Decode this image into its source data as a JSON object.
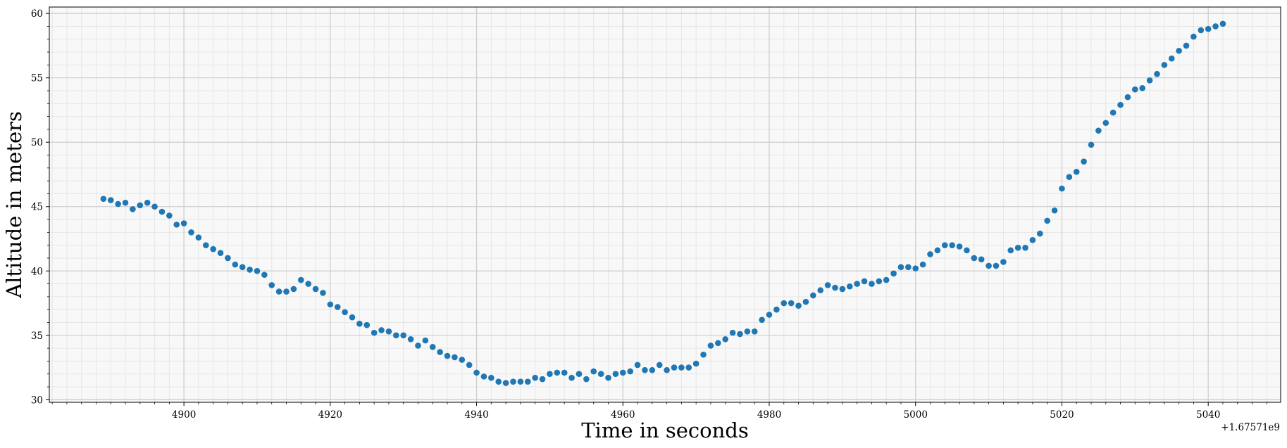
{
  "chart_data": {
    "type": "scatter",
    "title": "",
    "xlabel": "Time in seconds",
    "ylabel": "Altitude in meters",
    "x_offset_label": "+1.67571e9",
    "xlim": [
      4881.6,
      5049.9
    ],
    "ylim": [
      29.8,
      60.5
    ],
    "x_ticks": [
      4900,
      4920,
      4940,
      4960,
      4980,
      5000,
      5020,
      5040
    ],
    "x_tick_labels": [
      "4900",
      "4920",
      "4940",
      "4960",
      "4980",
      "5000",
      "5020",
      "5040"
    ],
    "y_ticks": [
      30,
      35,
      40,
      45,
      50,
      55,
      60
    ],
    "y_tick_labels": [
      "30",
      "35",
      "40",
      "45",
      "50",
      "55",
      "60"
    ],
    "grid": true,
    "minor_grid": true,
    "legend": "none",
    "colors": {
      "points": "#1f77b4",
      "plot_background": "#f8f8f8",
      "major_grid": "#cccccc",
      "minor_grid": "#e6e6e6"
    },
    "series": [
      {
        "x": [
          4889,
          4890,
          4891,
          4892,
          4893,
          4894,
          4895,
          4896,
          4897,
          4898,
          4899,
          4900,
          4901,
          4902,
          4903,
          4904,
          4905,
          4906,
          4907,
          4908,
          4909,
          4910,
          4911,
          4912,
          4913,
          4914,
          4915,
          4916,
          4917,
          4918,
          4919,
          4920,
          4921,
          4922,
          4923,
          4924,
          4925,
          4926,
          4927,
          4928,
          4929,
          4930,
          4931,
          4932,
          4933,
          4934,
          4935,
          4936,
          4937,
          4938,
          4939,
          4940,
          4941,
          4942,
          4943,
          4944,
          4945,
          4946,
          4947,
          4948,
          4949,
          4950,
          4951,
          4952,
          4953,
          4954,
          4955,
          4956,
          4957,
          4958,
          4959,
          4960,
          4961,
          4962,
          4963,
          4964,
          4965,
          4966,
          4967,
          4968,
          4969,
          4970,
          4971,
          4972,
          4973,
          4974,
          4975,
          4976,
          4977,
          4978,
          4979,
          4980,
          4981,
          4982,
          4983,
          4984,
          4985,
          4986,
          4987,
          4988,
          4989,
          4990,
          4991,
          4992,
          4993,
          4994,
          4995,
          4996,
          4997,
          4998,
          4999,
          5000,
          5001,
          5002,
          5003,
          5004,
          5005,
          5006,
          5007,
          5008,
          5009,
          5010,
          5011,
          5012,
          5013,
          5014,
          5015,
          5016,
          5017,
          5018,
          5019,
          5020,
          5021,
          5022,
          5023,
          5024,
          5025,
          5026,
          5027,
          5028,
          5029,
          5030,
          5031,
          5032,
          5033,
          5034,
          5035,
          5036,
          5037,
          5038,
          5039,
          5040,
          5041,
          5042
        ],
        "y": [
          45.6,
          45.5,
          45.2,
          45.3,
          44.8,
          45.1,
          45.3,
          45.0,
          44.6,
          44.3,
          43.6,
          43.7,
          43.0,
          42.6,
          42.0,
          41.7,
          41.4,
          41.0,
          40.5,
          40.3,
          40.1,
          40.0,
          39.7,
          38.9,
          38.4,
          38.4,
          38.6,
          39.3,
          39.0,
          38.6,
          38.3,
          37.4,
          37.2,
          36.8,
          36.4,
          35.9,
          35.8,
          35.2,
          35.4,
          35.3,
          35.0,
          35.0,
          34.7,
          34.2,
          34.6,
          34.1,
          33.7,
          33.4,
          33.3,
          33.1,
          32.7,
          32.1,
          31.8,
          31.7,
          31.4,
          31.3,
          31.4,
          31.4,
          31.4,
          31.7,
          31.6,
          32.0,
          32.1,
          32.1,
          31.7,
          32.0,
          31.6,
          32.2,
          32.0,
          31.7,
          32.0,
          32.1,
          32.2,
          32.7,
          32.3,
          32.3,
          32.7,
          32.3,
          32.5,
          32.5,
          32.5,
          32.8,
          33.5,
          34.2,
          34.4,
          34.7,
          35.2,
          35.1,
          35.3,
          35.3,
          36.2,
          36.6,
          37.0,
          37.5,
          37.5,
          37.3,
          37.6,
          38.1,
          38.5,
          38.9,
          38.7,
          38.6,
          38.8,
          39.0,
          39.2,
          39.0,
          39.2,
          39.3,
          39.8,
          40.3,
          40.3,
          40.2,
          40.5,
          41.3,
          41.6,
          42.0,
          42.0,
          41.9,
          41.6,
          41.0,
          40.9,
          40.4,
          40.4,
          40.7,
          41.6,
          41.8,
          41.8,
          42.4,
          42.9,
          43.9,
          44.7,
          46.4,
          47.3,
          47.7,
          48.5,
          49.8,
          50.9,
          51.5,
          52.3,
          52.9,
          53.5,
          54.1,
          54.2,
          54.8,
          55.3,
          56.0,
          56.5,
          57.1,
          57.5,
          58.2,
          58.7,
          58.8,
          59.0,
          59.2
        ]
      }
    ]
  }
}
